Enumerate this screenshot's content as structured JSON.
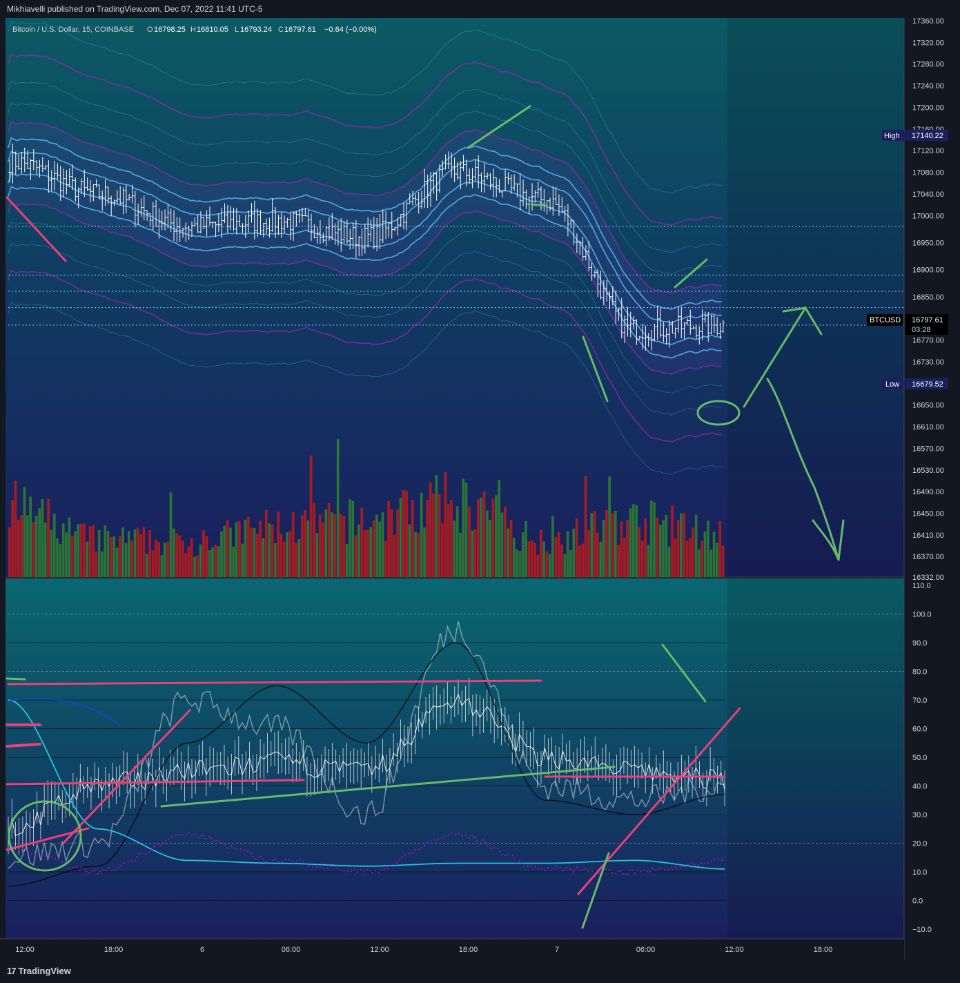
{
  "header": {
    "publish_line": "Mikhiavelli published on TradingView.com, Dec 07, 2022 11:41 UTC-5"
  },
  "legend": {
    "symbol": "Bitcoin / U.S. Dollar, 15, COINBASE",
    "o_label": "O",
    "o_value": "16798.25",
    "h_label": "H",
    "h_value": "16810.05",
    "l_label": "L",
    "l_value": "16793.24",
    "c_label": "C",
    "c_value": "16797.61",
    "change": "−0.64 (−0.00%)"
  },
  "price_axis": {
    "ticks": [
      "17360.00",
      "17320.00",
      "17280.00",
      "17240.00",
      "17200.00",
      "17160.00",
      "17120.00",
      "17080.00",
      "17040.00",
      "17000.00",
      "16950.00",
      "16900.00",
      "16850.00",
      "16810.00",
      "16770.00",
      "16730.00",
      "16690.00",
      "16650.00",
      "16610.00",
      "16570.00",
      "16530.00",
      "16490.00",
      "16450.00",
      "16410.00",
      "16370.00",
      "16332.00"
    ],
    "high_label": "High",
    "high_value": "17140.22",
    "low_label": "Low",
    "low_value": "16679.52",
    "last_symbol": "BTCUSD",
    "last_value": "16797.61",
    "last_countdown": "03:28"
  },
  "osc_axis": {
    "ticks": [
      "110.0",
      "100.0",
      "90.0",
      "80.0",
      "70.0",
      "60.0",
      "50.0",
      "40.0",
      "30.0",
      "20.0",
      "10.0",
      "0.0",
      "−10.0"
    ]
  },
  "time_axis": {
    "ticks": [
      "12:00",
      "18:00",
      "6",
      "06:00",
      "12:00",
      "18:00",
      "7",
      "06:00",
      "12:00",
      "18:00"
    ]
  },
  "footer": {
    "brand": "TradingView",
    "brand_mark": "17"
  },
  "colors": {
    "background_top": "#0b5a63",
    "background_bottom": "#1a1f5e",
    "up": "#2e7d32",
    "down": "#b71c1c",
    "candle": "#ffffff",
    "band_cyan": "#4fc3f7",
    "band_purple": "#9c27b0",
    "annotation_green": "#66bb6a",
    "annotation_pink": "#ec407a"
  },
  "chart_data": [
    {
      "type": "line",
      "title": "Bitcoin / U.S. Dollar, 15, COINBASE",
      "x": [
        "Dec 5 12:00",
        "Dec 5 18:00",
        "Dec 6 00:00",
        "Dec 6 06:00",
        "Dec 6 12:00",
        "Dec 6 18:00",
        "Dec 7 00:00",
        "Dec 7 06:00",
        "Dec 7 11:41"
      ],
      "series": [
        {
          "values": [
            17100,
            17040,
            16980,
            16990,
            16960,
            17080,
            17030,
            16790,
            16797.61
          ]
        }
      ],
      "ylim": [
        16332,
        17360
      ],
      "high": 17140.22,
      "low": 16679.52,
      "last": 16797.61
    },
    {
      "type": "bar",
      "x": [
        "Dec 5 12:00",
        "Dec 5 18:00",
        "Dec 6 00:00",
        "Dec 6 06:00",
        "Dec 6 12:00",
        "Dec 6 18:00",
        "Dec 7 00:00",
        "Dec 7 06:00",
        "Dec 7 11:41"
      ],
      "values": [
        55,
        30,
        28,
        40,
        45,
        60,
        30,
        45,
        35
      ]
    },
    {
      "type": "line",
      "x": [
        "Dec 5 12:00",
        "Dec 5 18:00",
        "Dec 6 00:00",
        "Dec 6 06:00",
        "Dec 6 12:00",
        "Dec 6 18:00",
        "Dec 7 00:00",
        "Dec 7 06:00",
        "Dec 7 11:41"
      ],
      "series": [
        {
          "values": [
            25,
            40,
            45,
            48,
            45,
            70,
            50,
            45,
            42
          ]
        },
        {
          "values": [
            15,
            20,
            70,
            60,
            30,
            95,
            40,
            35,
            40
          ]
        },
        {
          "values": [
            5,
            12,
            55,
            75,
            55,
            90,
            35,
            30,
            37
          ]
        },
        {
          "values": [
            70,
            25,
            14,
            13,
            12,
            13,
            13,
            14,
            11
          ]
        },
        {
          "values": [
            18,
            10,
            23,
            14,
            10,
            23,
            11,
            10,
            14
          ]
        }
      ],
      "ylim": [
        -10,
        110
      ],
      "levels": [
        100,
        90,
        80,
        70,
        60,
        50,
        40,
        30,
        20,
        10,
        0
      ]
    }
  ]
}
